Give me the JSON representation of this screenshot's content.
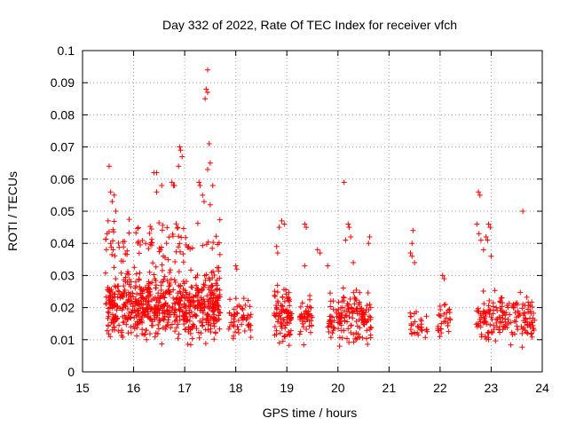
{
  "chart_data": {
    "type": "scatter",
    "title": "Day 332 of 2022, Rate Of TEC Index for receiver vfch",
    "xlabel": "GPS time / hours",
    "ylabel": "ROTI / TECUs",
    "xlim": [
      15,
      24
    ],
    "ylim": [
      0,
      0.1
    ],
    "xticks": [
      "15",
      "16",
      "17",
      "18",
      "19",
      "20",
      "21",
      "22",
      "23",
      "24"
    ],
    "yticks": [
      "0",
      "0.01",
      "0.02",
      "0.03",
      "0.04",
      "0.05",
      "0.06",
      "0.07",
      "0.08",
      "0.09",
      "0.1"
    ],
    "grid": true,
    "marker": "+",
    "color": "#ff0000",
    "clusters": [
      {
        "x_range": [
          15.45,
          17.7
        ],
        "y_range": [
          0.006,
          0.036
        ],
        "count": 700
      },
      {
        "x_range": [
          15.45,
          17.7
        ],
        "y_range": [
          0.03,
          0.05
        ],
        "count": 90
      },
      {
        "x_range": [
          17.85,
          18.3
        ],
        "y_range": [
          0.007,
          0.027
        ],
        "count": 55
      },
      {
        "x_range": [
          18.75,
          19.1
        ],
        "y_range": [
          0.005,
          0.03
        ],
        "count": 90
      },
      {
        "x_range": [
          19.25,
          19.5
        ],
        "y_range": [
          0.008,
          0.025
        ],
        "count": 45
      },
      {
        "x_range": [
          19.8,
          20.65
        ],
        "y_range": [
          0.006,
          0.028
        ],
        "count": 160
      },
      {
        "x_range": [
          21.4,
          21.75
        ],
        "y_range": [
          0.008,
          0.022
        ],
        "count": 30
      },
      {
        "x_range": [
          21.95,
          22.2
        ],
        "y_range": [
          0.008,
          0.023
        ],
        "count": 30
      },
      {
        "x_range": [
          22.7,
          23.85
        ],
        "y_range": [
          0.006,
          0.028
        ],
        "count": 170
      }
    ],
    "points": [
      [
        15.52,
        0.064
      ],
      [
        15.55,
        0.056
      ],
      [
        15.62,
        0.055
      ],
      [
        15.58,
        0.053
      ],
      [
        15.65,
        0.05
      ],
      [
        15.5,
        0.047
      ],
      [
        15.48,
        0.043
      ],
      [
        15.55,
        0.04
      ],
      [
        15.6,
        0.038
      ],
      [
        16.4,
        0.062
      ],
      [
        16.45,
        0.062
      ],
      [
        16.45,
        0.056
      ],
      [
        16.55,
        0.058
      ],
      [
        16.75,
        0.059
      ],
      [
        16.78,
        0.058
      ],
      [
        16.8,
        0.058
      ],
      [
        16.9,
        0.07
      ],
      [
        16.92,
        0.069
      ],
      [
        16.95,
        0.067
      ],
      [
        16.88,
        0.064
      ],
      [
        17.28,
        0.059
      ],
      [
        17.3,
        0.058
      ],
      [
        17.35,
        0.055
      ],
      [
        17.38,
        0.053
      ],
      [
        17.45,
        0.094
      ],
      [
        17.42,
        0.088
      ],
      [
        17.45,
        0.087
      ],
      [
        17.4,
        0.085
      ],
      [
        17.48,
        0.071
      ],
      [
        17.5,
        0.065
      ],
      [
        17.45,
        0.063
      ],
      [
        17.55,
        0.058
      ],
      [
        17.5,
        0.052
      ],
      [
        18.0,
        0.033
      ],
      [
        18.02,
        0.032
      ],
      [
        18.9,
        0.047
      ],
      [
        18.95,
        0.046
      ],
      [
        18.85,
        0.045
      ],
      [
        18.8,
        0.039
      ],
      [
        18.82,
        0.037
      ],
      [
        19.35,
        0.046
      ],
      [
        19.38,
        0.045
      ],
      [
        19.35,
        0.033
      ],
      [
        19.6,
        0.038
      ],
      [
        19.65,
        0.037
      ],
      [
        19.8,
        0.033
      ],
      [
        20.12,
        0.059
      ],
      [
        20.2,
        0.046
      ],
      [
        20.22,
        0.045
      ],
      [
        20.15,
        0.041
      ],
      [
        20.25,
        0.042
      ],
      [
        20.3,
        0.034
      ],
      [
        20.62,
        0.042
      ],
      [
        20.6,
        0.04
      ],
      [
        21.47,
        0.044
      ],
      [
        21.45,
        0.04
      ],
      [
        21.42,
        0.037
      ],
      [
        21.45,
        0.036
      ],
      [
        21.5,
        0.034
      ],
      [
        22.05,
        0.03
      ],
      [
        22.08,
        0.029
      ],
      [
        22.75,
        0.056
      ],
      [
        22.78,
        0.055
      ],
      [
        22.72,
        0.046
      ],
      [
        22.76,
        0.043
      ],
      [
        22.8,
        0.041
      ],
      [
        22.95,
        0.046
      ],
      [
        22.98,
        0.045
      ],
      [
        22.9,
        0.042
      ],
      [
        22.93,
        0.041
      ],
      [
        22.85,
        0.038
      ],
      [
        23.0,
        0.036
      ],
      [
        23.62,
        0.05
      ]
    ]
  }
}
